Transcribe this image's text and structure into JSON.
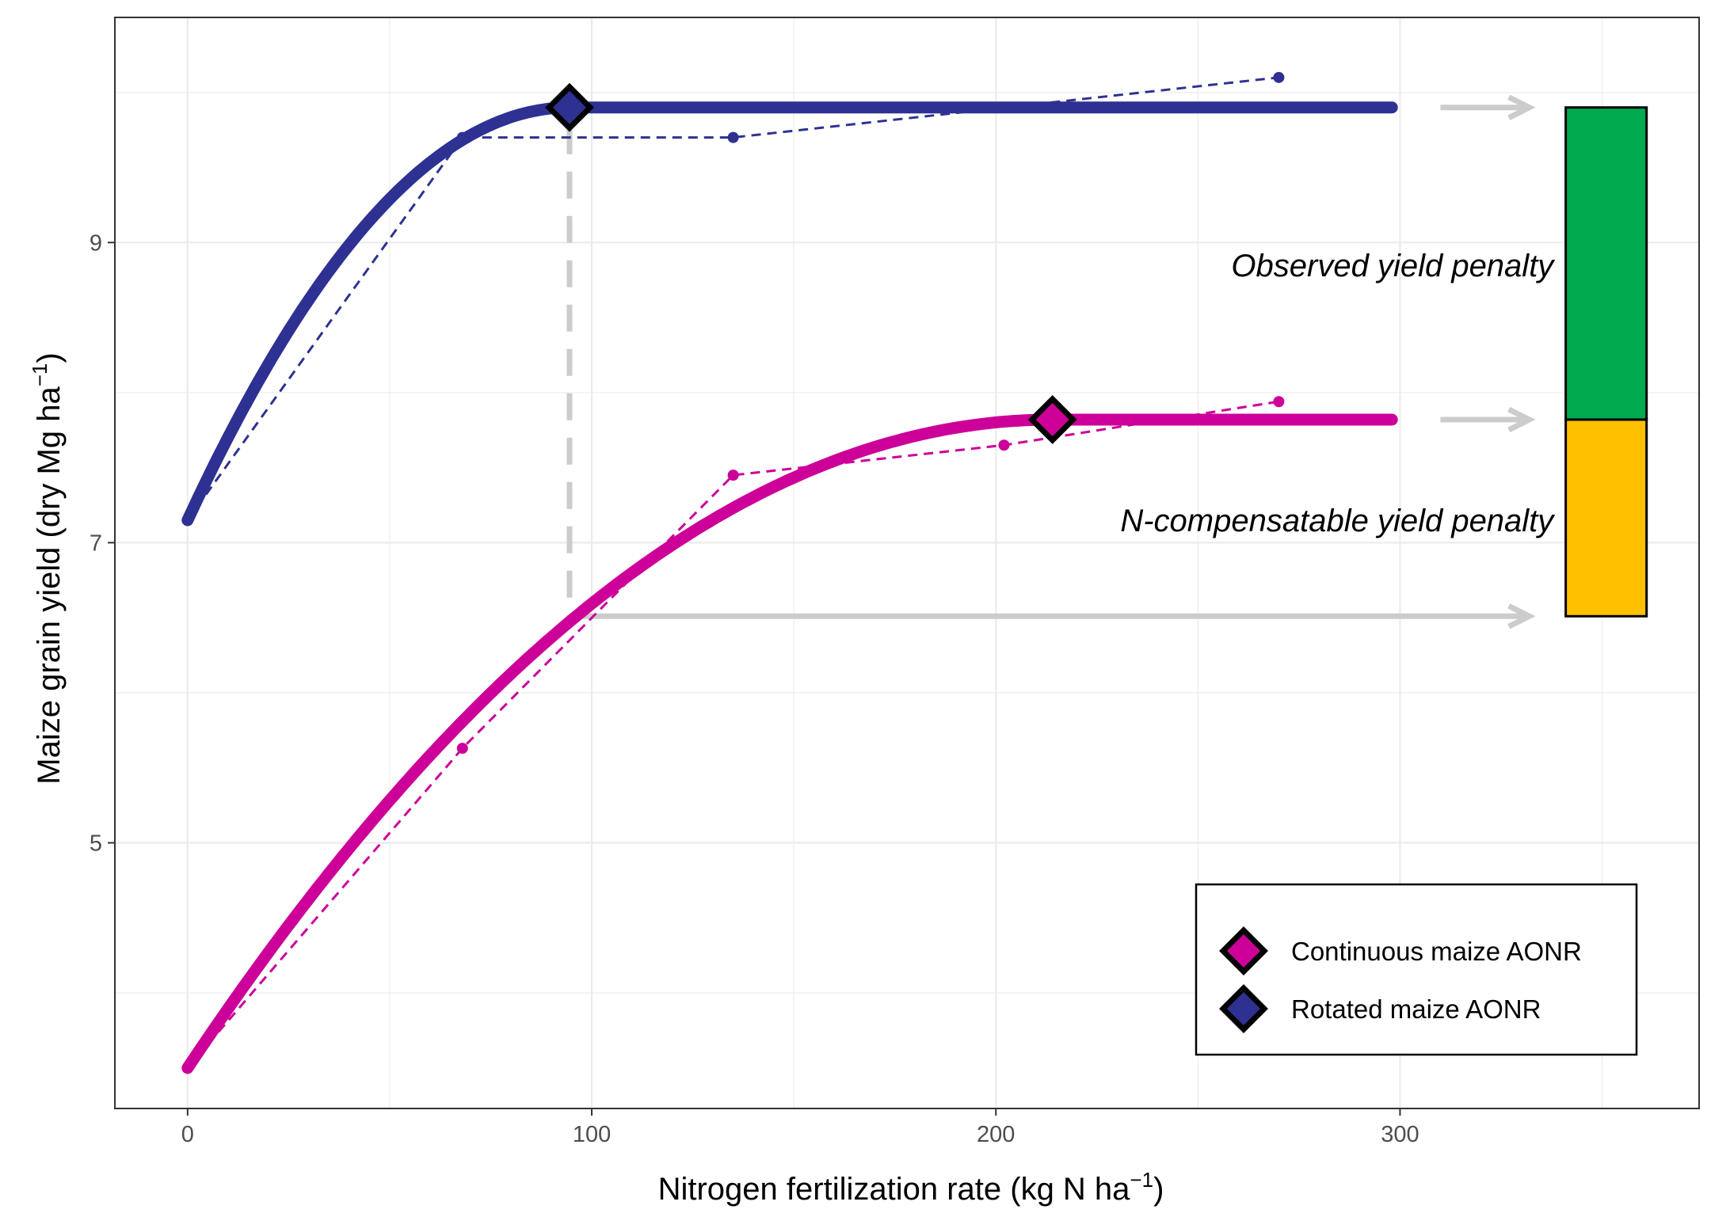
{
  "chart_data": {
    "type": "line",
    "xlabel": {
      "main": "Nitrogen fertilization rate (kg N ha",
      "sup": "−1",
      "close": ")"
    },
    "ylabel": {
      "main": "Maize grain yield (dry Mg ha",
      "sup": "−1",
      "close": ")"
    },
    "xlim": [
      -18,
      374
    ],
    "ylim": [
      3.23,
      10.5
    ],
    "xticks": [
      0,
      100,
      200,
      300
    ],
    "yticks": [
      5,
      7,
      9
    ],
    "xtick_labels": [
      "0",
      "100",
      "200",
      "300"
    ],
    "ytick_labels": [
      "5",
      "7",
      "9"
    ],
    "grid": true,
    "series": [
      {
        "name": "Rotated maize",
        "color": "#2E3192",
        "fit": {
          "model": "quadratic-plateau",
          "x0": 0,
          "y0": 7.15,
          "aonr": 94.5,
          "plateau": 9.9,
          "x_end": 298
        },
        "observed": {
          "x": [
            0,
            68,
            135,
            270
          ],
          "y": [
            7.15,
            9.7,
            9.7,
            10.1
          ]
        }
      },
      {
        "name": "Continuous maize",
        "color": "#CC0099",
        "fit": {
          "model": "quadratic-plateau",
          "x0": 0,
          "y0": 3.5,
          "aonr": 214,
          "plateau": 7.82,
          "x_end": 298
        },
        "observed": {
          "x": [
            0,
            68,
            135,
            202,
            270
          ],
          "y": [
            3.5,
            5.63,
            7.45,
            7.65,
            7.94
          ]
        }
      }
    ],
    "aonr_points": [
      {
        "name": "Rotated maize AONR",
        "x": 94.5,
        "y": 9.9,
        "color": "#2E3192"
      },
      {
        "name": "Continuous maize AONR",
        "x": 214,
        "y": 7.82,
        "color": "#CC0099"
      }
    ],
    "reference_lines": {
      "vertical_x": 94.5,
      "y_at_continuous": 6.51,
      "color": "#CCCCCC"
    },
    "arrows": [
      {
        "from_x": 310,
        "to_x": 332,
        "y": 9.9
      },
      {
        "from_x": 310,
        "to_x": 332,
        "y": 7.82
      },
      {
        "from_x": 94.5,
        "to_x": 332,
        "y": 6.51
      }
    ],
    "penalty_bar": {
      "x_min": 341,
      "x_max": 361,
      "segments": [
        {
          "label": "Observed yield penalty",
          "y_min": 7.82,
          "y_max": 9.9,
          "color": "#00AA4F"
        },
        {
          "label": "N-compensatable yield penalty",
          "y_min": 6.51,
          "y_max": 7.82,
          "color": "#FFC000"
        }
      ]
    },
    "annotations": [
      {
        "text": "Observed yield penalty",
        "x": 338,
        "y": 8.85
      },
      {
        "text": "N-compensatable yield penalty",
        "x": 338,
        "y": 7.15
      }
    ],
    "legend": {
      "placement": "bottom-right",
      "entries": [
        {
          "label": "Continuous maize AONR",
          "color": "#CC0099"
        },
        {
          "label": "Rotated maize AONR",
          "color": "#2E3192"
        }
      ]
    }
  }
}
